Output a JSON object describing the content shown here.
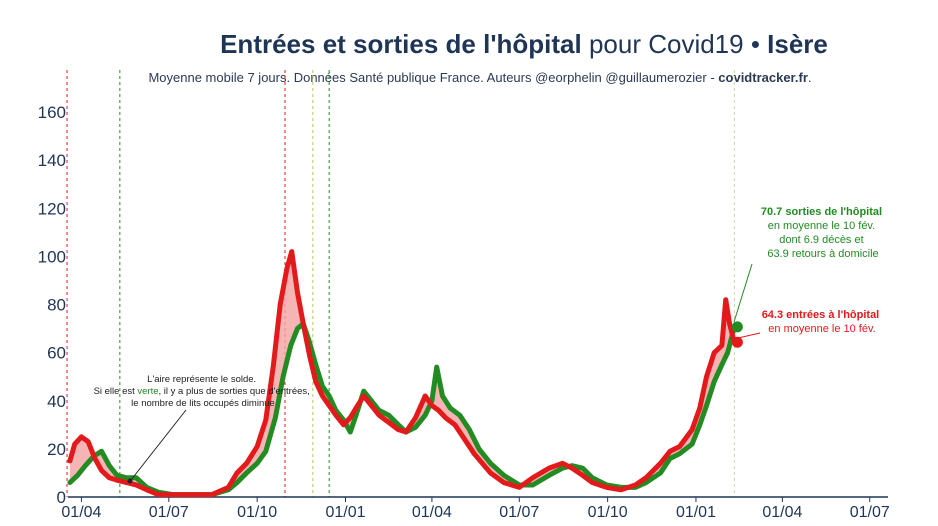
{
  "chart_data": {
    "type": "line",
    "title": {
      "bold_part": "Entrées et sorties de l'hôpital",
      "normal_part": " pour Covid19 • ",
      "region": "Isère"
    },
    "subtitle": {
      "text": "Moyenne mobile 7 jours. Données Santé publique France. Auteurs @eorphelin @guillaumerozier - ",
      "site": "covidtracker.fr",
      "end": "."
    },
    "ylim": [
      0,
      165
    ],
    "yticks": [
      0,
      20,
      40,
      60,
      80,
      100,
      120,
      140,
      160
    ],
    "xlim": [
      "2020-03-18",
      "2022-07-20"
    ],
    "xticks": [
      {
        "date": "2020-04-01",
        "label": "01/04"
      },
      {
        "date": "2020-07-01",
        "label": "01/07"
      },
      {
        "date": "2020-10-01",
        "label": "01/10"
      },
      {
        "date": "2021-01-01",
        "label": "01/01"
      },
      {
        "date": "2021-04-01",
        "label": "01/04"
      },
      {
        "date": "2021-07-01",
        "label": "01/07"
      },
      {
        "date": "2021-10-01",
        "label": "01/10"
      },
      {
        "date": "2022-01-01",
        "label": "01/01"
      },
      {
        "date": "2022-04-01",
        "label": "01/04"
      },
      {
        "date": "2022-07-01",
        "label": "01/07"
      }
    ],
    "vlines": [
      {
        "date": "2020-03-17",
        "color": "#e31a1c"
      },
      {
        "date": "2020-05-11",
        "color": "#228b22"
      },
      {
        "date": "2020-10-30",
        "color": "#e31a1c"
      },
      {
        "date": "2020-11-28",
        "color": "#b5c94a"
      },
      {
        "date": "2020-12-15",
        "color": "#228b22"
      },
      {
        "date": "2022-02-10",
        "color": "#cfd99a"
      }
    ],
    "series": [
      {
        "key": "sorties",
        "color": "#228b22",
        "points": [
          [
            "2020-03-20",
            6
          ],
          [
            "2020-03-28",
            9
          ],
          [
            "2020-04-05",
            13
          ],
          [
            "2020-04-14",
            17
          ],
          [
            "2020-04-22",
            19
          ],
          [
            "2020-04-30",
            13
          ],
          [
            "2020-05-08",
            9
          ],
          [
            "2020-05-18",
            8
          ],
          [
            "2020-05-28",
            8
          ],
          [
            "2020-06-08",
            4
          ],
          [
            "2020-06-20",
            2
          ],
          [
            "2020-07-05",
            1
          ],
          [
            "2020-07-25",
            1
          ],
          [
            "2020-08-15",
            1
          ],
          [
            "2020-09-01",
            3
          ],
          [
            "2020-09-10",
            6
          ],
          [
            "2020-09-20",
            10
          ],
          [
            "2020-10-01",
            14
          ],
          [
            "2020-10-10",
            19
          ],
          [
            "2020-10-20",
            33
          ],
          [
            "2020-10-28",
            50
          ],
          [
            "2020-11-05",
            63
          ],
          [
            "2020-11-12",
            70
          ],
          [
            "2020-11-18",
            72
          ],
          [
            "2020-11-24",
            65
          ],
          [
            "2020-12-01",
            55
          ],
          [
            "2020-12-08",
            46
          ],
          [
            "2020-12-15",
            42
          ],
          [
            "2020-12-22",
            36
          ],
          [
            "2020-12-30",
            32
          ],
          [
            "2021-01-06",
            27
          ],
          [
            "2021-01-12",
            34
          ],
          [
            "2021-01-20",
            44
          ],
          [
            "2021-01-28",
            40
          ],
          [
            "2021-02-05",
            36
          ],
          [
            "2021-02-15",
            34
          ],
          [
            "2021-02-25",
            30
          ],
          [
            "2021-03-05",
            27
          ],
          [
            "2021-03-15",
            29
          ],
          [
            "2021-03-25",
            34
          ],
          [
            "2021-04-01",
            40
          ],
          [
            "2021-04-06",
            54
          ],
          [
            "2021-04-12",
            42
          ],
          [
            "2021-04-20",
            37
          ],
          [
            "2021-04-30",
            34
          ],
          [
            "2021-05-10",
            28
          ],
          [
            "2021-05-20",
            20
          ],
          [
            "2021-06-01",
            14
          ],
          [
            "2021-06-15",
            9
          ],
          [
            "2021-07-01",
            5
          ],
          [
            "2021-07-15",
            5
          ],
          [
            "2021-08-01",
            9
          ],
          [
            "2021-08-15",
            12
          ],
          [
            "2021-08-25",
            13
          ],
          [
            "2021-09-05",
            12
          ],
          [
            "2021-09-15",
            8
          ],
          [
            "2021-09-30",
            5
          ],
          [
            "2021-10-15",
            4
          ],
          [
            "2021-10-30",
            4
          ],
          [
            "2021-11-10",
            6
          ],
          [
            "2021-11-25",
            10
          ],
          [
            "2021-12-05",
            16
          ],
          [
            "2021-12-15",
            18
          ],
          [
            "2021-12-28",
            22
          ],
          [
            "2022-01-05",
            30
          ],
          [
            "2022-01-12",
            38
          ],
          [
            "2022-01-20",
            48
          ],
          [
            "2022-01-28",
            55
          ],
          [
            "2022-02-03",
            60
          ],
          [
            "2022-02-10",
            70.7
          ]
        ]
      },
      {
        "key": "entrees",
        "color": "#e31a1c",
        "points": [
          [
            "2020-03-20",
            15
          ],
          [
            "2020-03-25",
            22
          ],
          [
            "2020-04-01",
            25
          ],
          [
            "2020-04-08",
            23
          ],
          [
            "2020-04-15",
            16
          ],
          [
            "2020-04-22",
            11
          ],
          [
            "2020-04-30",
            8
          ],
          [
            "2020-05-08",
            7
          ],
          [
            "2020-05-18",
            6
          ],
          [
            "2020-05-28",
            5
          ],
          [
            "2020-06-08",
            3
          ],
          [
            "2020-06-20",
            1
          ],
          [
            "2020-07-05",
            1
          ],
          [
            "2020-07-25",
            1
          ],
          [
            "2020-08-15",
            1
          ],
          [
            "2020-09-01",
            4
          ],
          [
            "2020-09-10",
            10
          ],
          [
            "2020-09-20",
            14
          ],
          [
            "2020-10-01",
            21
          ],
          [
            "2020-10-10",
            32
          ],
          [
            "2020-10-18",
            55
          ],
          [
            "2020-10-25",
            80
          ],
          [
            "2020-11-01",
            95
          ],
          [
            "2020-11-06",
            102
          ],
          [
            "2020-11-12",
            85
          ],
          [
            "2020-11-18",
            72
          ],
          [
            "2020-11-25",
            58
          ],
          [
            "2020-12-01",
            48
          ],
          [
            "2020-12-08",
            42
          ],
          [
            "2020-12-15",
            38
          ],
          [
            "2020-12-22",
            34
          ],
          [
            "2020-12-30",
            30
          ],
          [
            "2021-01-06",
            33
          ],
          [
            "2021-01-12",
            37
          ],
          [
            "2021-01-20",
            42
          ],
          [
            "2021-01-28",
            38
          ],
          [
            "2021-02-05",
            34
          ],
          [
            "2021-02-15",
            31
          ],
          [
            "2021-02-25",
            28
          ],
          [
            "2021-03-05",
            27
          ],
          [
            "2021-03-15",
            33
          ],
          [
            "2021-03-25",
            42
          ],
          [
            "2021-04-01",
            38
          ],
          [
            "2021-04-08",
            36
          ],
          [
            "2021-04-15",
            33
          ],
          [
            "2021-04-25",
            30
          ],
          [
            "2021-05-05",
            24
          ],
          [
            "2021-05-15",
            18
          ],
          [
            "2021-06-01",
            10
          ],
          [
            "2021-06-15",
            6
          ],
          [
            "2021-07-01",
            4
          ],
          [
            "2021-07-15",
            8
          ],
          [
            "2021-08-01",
            12
          ],
          [
            "2021-08-15",
            14
          ],
          [
            "2021-08-25",
            12
          ],
          [
            "2021-09-05",
            9
          ],
          [
            "2021-09-15",
            6
          ],
          [
            "2021-09-30",
            4
          ],
          [
            "2021-10-15",
            3
          ],
          [
            "2021-10-30",
            5
          ],
          [
            "2021-11-10",
            8
          ],
          [
            "2021-11-25",
            14
          ],
          [
            "2021-12-05",
            19
          ],
          [
            "2021-12-15",
            21
          ],
          [
            "2021-12-28",
            28
          ],
          [
            "2022-01-05",
            37
          ],
          [
            "2022-01-12",
            50
          ],
          [
            "2022-01-20",
            60
          ],
          [
            "2022-01-28",
            63
          ],
          [
            "2022-02-01",
            82
          ],
          [
            "2022-02-05",
            72
          ],
          [
            "2022-02-10",
            64.3
          ]
        ]
      }
    ],
    "annotations": {
      "green": {
        "lines": [
          "70.7 sorties de l'hôpital",
          "en moyenne le 10 fév.",
          "dont 6.9 décès et",
          "63.9 retours à domicile"
        ]
      },
      "red": {
        "lines": [
          "64.3 entrées à l'hôpital",
          "en moyenne le 10 fév."
        ]
      },
      "note": {
        "line1": "L'aire représente le solde.",
        "line2_prefix": "Si elle est ",
        "line2_colored": "verte",
        "line2_suffix": ", il y a plus de sorties que d'entrées,",
        "line3": "le nombre de lits occupés diminue"
      }
    }
  }
}
